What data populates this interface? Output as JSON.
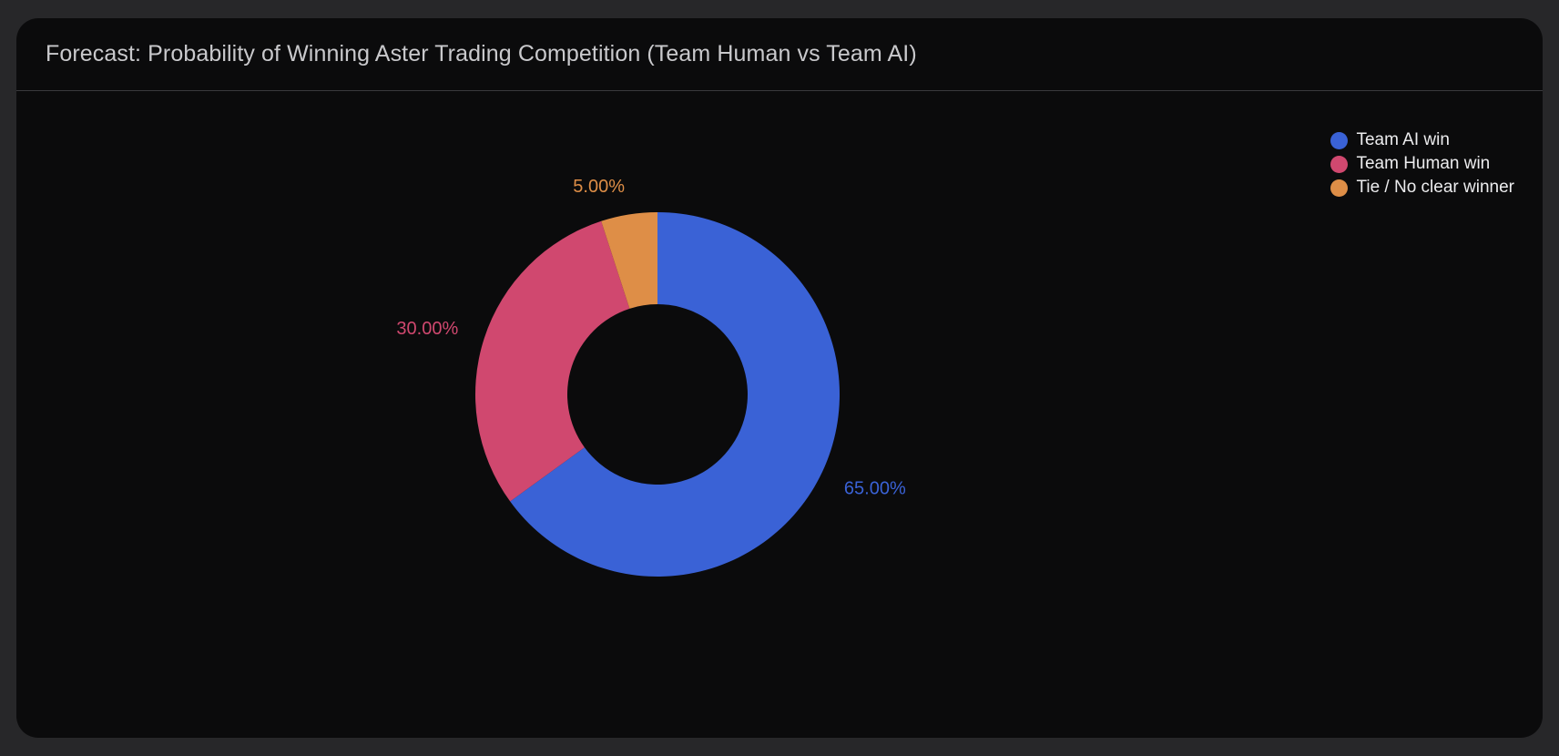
{
  "card": {
    "title": "Forecast: Probability of Winning Aster Trading Competition (Team Human vs Team AI)"
  },
  "chart_data": {
    "type": "pie",
    "title": "Forecast: Probability of Winning Aster Trading Competition (Team Human vs Team AI)",
    "donut": true,
    "legend_position": "top-right",
    "slices": [
      {
        "name": "Team AI win",
        "value": 65,
        "label": "65.00%",
        "color": "#3a62d6"
      },
      {
        "name": "Team Human win",
        "value": 30,
        "label": "30.00%",
        "color": "#d0486f"
      },
      {
        "name": "Tie / No clear winner",
        "value": 5,
        "label": "5.00%",
        "color": "#de8e47"
      }
    ]
  }
}
